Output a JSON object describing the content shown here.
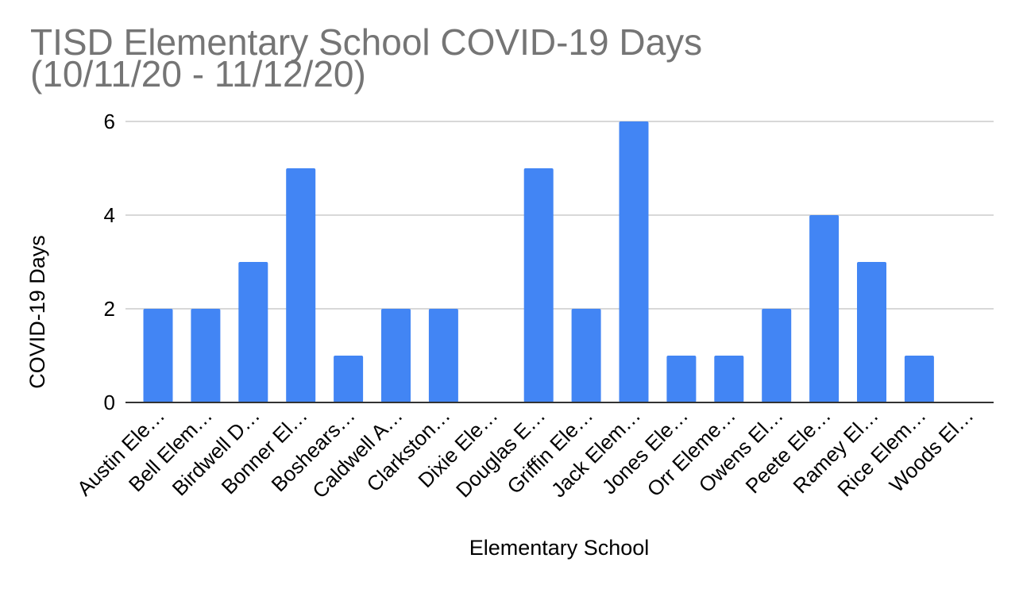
{
  "colors": {
    "bar": "#4285f4",
    "title": "#757575",
    "grid": "#cccccc",
    "axis": "#333333"
  },
  "chart_data": {
    "type": "bar",
    "title_line1": "TISD Elementary School COVID-19 Days",
    "title_line2": "(10/11/20 - 11/12/20)",
    "xlabel": "Elementary School",
    "ylabel": "COVID-19 Days",
    "ylim": [
      0,
      6
    ],
    "yticks": [
      "0",
      "2",
      "4",
      "6"
    ],
    "grid": true,
    "legend": "none",
    "categories": [
      "Austin Ele…",
      "Bell Elem…",
      "Birdwell D…",
      "Bonner El…",
      "Boshears…",
      "Caldwell A…",
      "Clarkston…",
      "Dixie Ele…",
      "Douglas E…",
      "Griffin Ele…",
      "Jack Elem…",
      "Jones Ele…",
      "Orr Eleme…",
      "Owens El…",
      "Peete Ele…",
      "Ramey El…",
      "Rice Elem…",
      "Woods El…"
    ],
    "values": [
      2,
      2,
      3,
      5,
      1,
      2,
      2,
      0,
      5,
      2,
      6,
      1,
      1,
      2,
      4,
      3,
      1,
      0
    ]
  }
}
